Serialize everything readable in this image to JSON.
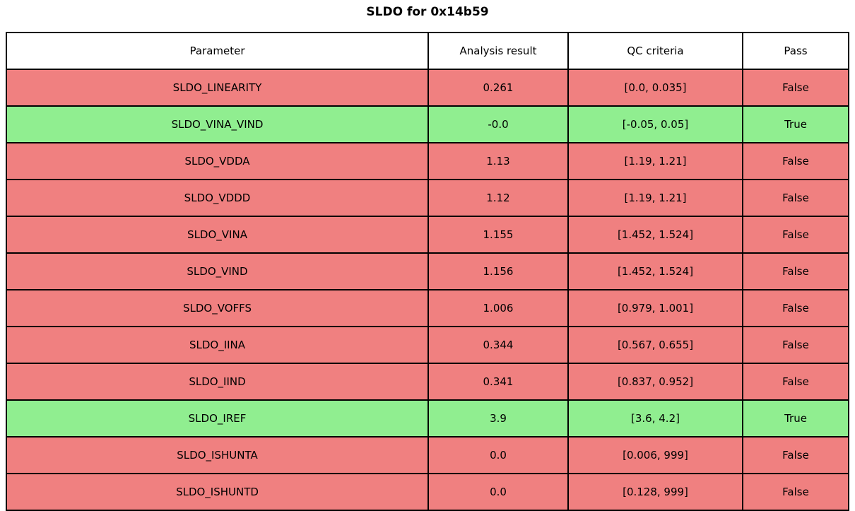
{
  "title": "SLDO for 0x14b59",
  "colors": {
    "fail_red": "#F08080",
    "pass_green": "#90EE90",
    "header_bg": "#FFFFFF",
    "border": "#000000",
    "text": "#000000"
  },
  "table": {
    "headers": [
      "Parameter",
      "Analysis result",
      "QC criteria",
      "Pass"
    ],
    "rows": [
      {
        "parameter": "SLDO_LINEARITY",
        "analysis_result": "0.261",
        "qc_criteria": "[0.0, 0.035]",
        "pass": "False"
      },
      {
        "parameter": "SLDO_VINA_VIND",
        "analysis_result": "-0.0",
        "qc_criteria": "[-0.05, 0.05]",
        "pass": "True"
      },
      {
        "parameter": "SLDO_VDDA",
        "analysis_result": "1.13",
        "qc_criteria": "[1.19, 1.21]",
        "pass": "False"
      },
      {
        "parameter": "SLDO_VDDD",
        "analysis_result": "1.12",
        "qc_criteria": "[1.19, 1.21]",
        "pass": "False"
      },
      {
        "parameter": "SLDO_VINA",
        "analysis_result": "1.155",
        "qc_criteria": "[1.452, 1.524]",
        "pass": "False"
      },
      {
        "parameter": "SLDO_VIND",
        "analysis_result": "1.156",
        "qc_criteria": "[1.452, 1.524]",
        "pass": "False"
      },
      {
        "parameter": "SLDO_VOFFS",
        "analysis_result": "1.006",
        "qc_criteria": "[0.979, 1.001]",
        "pass": "False"
      },
      {
        "parameter": "SLDO_IINA",
        "analysis_result": "0.344",
        "qc_criteria": "[0.567, 0.655]",
        "pass": "False"
      },
      {
        "parameter": "SLDO_IIND",
        "analysis_result": "0.341",
        "qc_criteria": "[0.837, 0.952]",
        "pass": "False"
      },
      {
        "parameter": "SLDO_IREF",
        "analysis_result": "3.9",
        "qc_criteria": "[3.6, 4.2]",
        "pass": "True"
      },
      {
        "parameter": "SLDO_ISHUNTA",
        "analysis_result": "0.0",
        "qc_criteria": "[0.006, 999]",
        "pass": "False"
      },
      {
        "parameter": "SLDO_ISHUNTD",
        "analysis_result": "0.0",
        "qc_criteria": "[0.128, 999]",
        "pass": "False"
      }
    ]
  },
  "chart_data": {
    "type": "table",
    "title": "SLDO for 0x14b59",
    "columns": [
      "Parameter",
      "Analysis result",
      "QC criteria",
      "Pass"
    ],
    "rows": [
      [
        "SLDO_LINEARITY",
        "0.261",
        "[0.0, 0.035]",
        "False"
      ],
      [
        "SLDO_VINA_VIND",
        "-0.0",
        "[-0.05, 0.05]",
        "True"
      ],
      [
        "SLDO_VDDA",
        "1.13",
        "[1.19, 1.21]",
        "False"
      ],
      [
        "SLDO_VDDD",
        "1.12",
        "[1.19, 1.21]",
        "False"
      ],
      [
        "SLDO_VINA",
        "1.155",
        "[1.452, 1.524]",
        "False"
      ],
      [
        "SLDO_VIND",
        "1.156",
        "[1.452, 1.524]",
        "False"
      ],
      [
        "SLDO_VOFFS",
        "1.006",
        "[0.979, 1.001]",
        "False"
      ],
      [
        "SLDO_IINA",
        "0.344",
        "[0.567, 0.655]",
        "False"
      ],
      [
        "SLDO_IIND",
        "0.341",
        "[0.837, 0.952]",
        "False"
      ],
      [
        "SLDO_IREF",
        "3.9",
        "[3.6, 4.2]",
        "True"
      ],
      [
        "SLDO_ISHUNTA",
        "0.0",
        "[0.006, 999]",
        "False"
      ],
      [
        "SLDO_ISHUNTD",
        "0.0",
        "[0.128, 999]",
        "False"
      ]
    ],
    "row_status_colors": {
      "True": "#90EE90",
      "False": "#F08080"
    },
    "layout": {
      "title_position": "top-center",
      "grid": "full-borders",
      "header_background": "#FFFFFF"
    }
  }
}
